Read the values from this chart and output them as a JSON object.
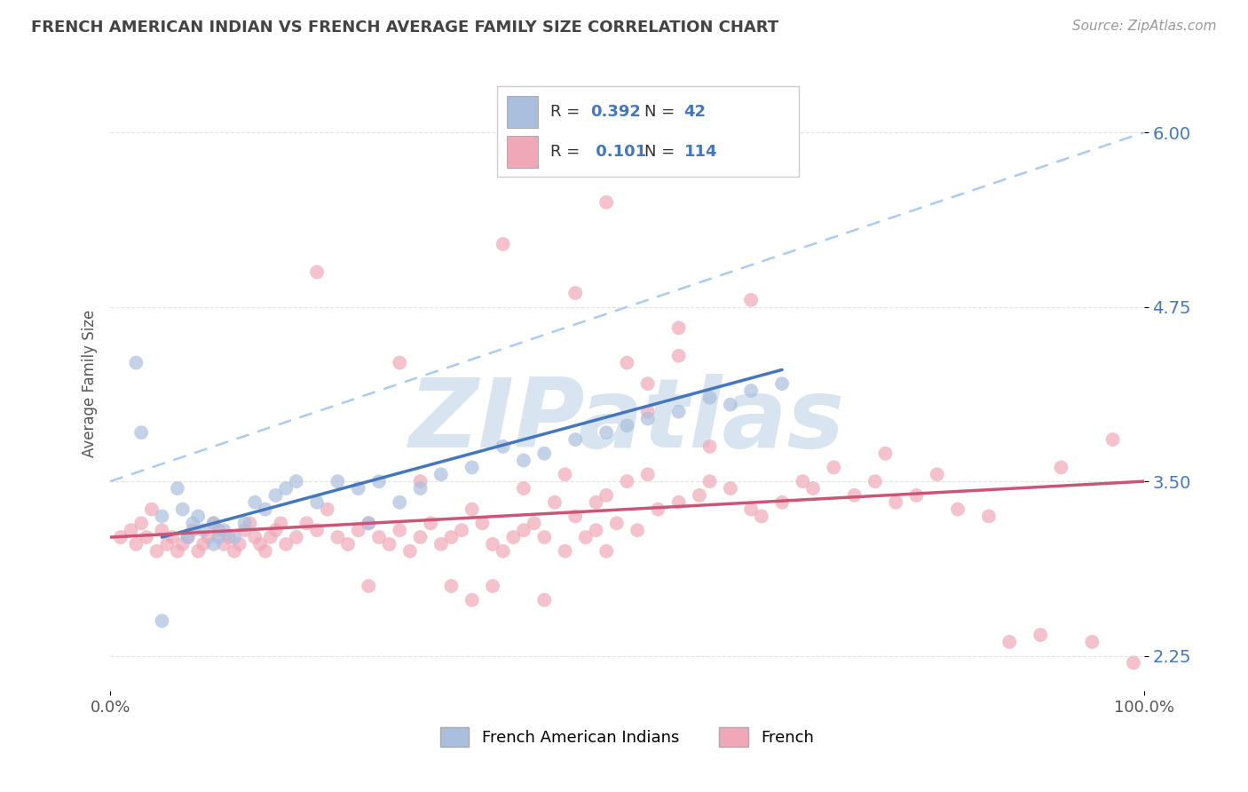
{
  "title": "FRENCH AMERICAN INDIAN VS FRENCH AVERAGE FAMILY SIZE CORRELATION CHART",
  "source_text": "Source: ZipAtlas.com",
  "ylabel": "Average Family Size",
  "y_ticks": [
    2.25,
    3.5,
    4.75,
    6.0
  ],
  "x_range": [
    0,
    100
  ],
  "y_range": [
    2.0,
    6.4
  ],
  "blue_r": "0.392",
  "blue_n": "42",
  "pink_r": "0.101",
  "pink_n": "114",
  "blue_scatter_color": "#AABFDD",
  "pink_scatter_color": "#F0A8B8",
  "blue_line_color": "#4477BB",
  "pink_line_color": "#CC5577",
  "dash_line_color": "#AACCEE",
  "watermark": "ZIPatlas",
  "watermark_color": "#D8E4F0",
  "background_color": "#FFFFFF",
  "grid_color": "#DDDDDD",
  "ytick_color": "#4477BB",
  "title_color": "#444444",
  "legend_blue_patch": "#AABFDD",
  "legend_pink_patch": "#F0A8B8",
  "legend_text_color": "#333333",
  "legend_value_color": "#4477BB",
  "blue_scatter_x": [
    2.5,
    3.0,
    5.0,
    6.5,
    7.0,
    7.5,
    8.0,
    8.5,
    9.0,
    10.0,
    10.5,
    11.0,
    12.0,
    13.0,
    14.0,
    15.0,
    16.0,
    17.0,
    18.0,
    20.0,
    22.0,
    24.0,
    25.0,
    26.0,
    28.0,
    30.0,
    32.0,
    35.0,
    38.0,
    40.0,
    42.0,
    45.0,
    48.0,
    50.0,
    52.0,
    55.0,
    58.0,
    60.0,
    62.0,
    65.0,
    5.0,
    10.0
  ],
  "blue_scatter_y": [
    4.35,
    3.85,
    3.25,
    3.45,
    3.3,
    3.1,
    3.2,
    3.25,
    3.15,
    3.2,
    3.1,
    3.15,
    3.1,
    3.2,
    3.35,
    3.3,
    3.4,
    3.45,
    3.5,
    3.35,
    3.5,
    3.45,
    3.2,
    3.5,
    3.35,
    3.45,
    3.55,
    3.6,
    3.75,
    3.65,
    3.7,
    3.8,
    3.85,
    3.9,
    3.95,
    4.0,
    4.1,
    4.05,
    4.15,
    4.2,
    2.5,
    3.05
  ],
  "pink_scatter_x": [
    1.0,
    2.0,
    2.5,
    3.0,
    3.5,
    4.0,
    4.5,
    5.0,
    5.5,
    6.0,
    6.5,
    7.0,
    7.5,
    8.0,
    8.5,
    9.0,
    9.5,
    10.0,
    10.5,
    11.0,
    11.5,
    12.0,
    12.5,
    13.0,
    13.5,
    14.0,
    14.5,
    15.0,
    15.5,
    16.0,
    16.5,
    17.0,
    18.0,
    19.0,
    20.0,
    21.0,
    22.0,
    23.0,
    24.0,
    25.0,
    26.0,
    27.0,
    28.0,
    29.0,
    30.0,
    31.0,
    32.0,
    33.0,
    34.0,
    35.0,
    36.0,
    37.0,
    38.0,
    39.0,
    40.0,
    41.0,
    42.0,
    43.0,
    44.0,
    45.0,
    46.0,
    47.0,
    48.0,
    49.0,
    50.0,
    51.0,
    52.0,
    53.0,
    55.0,
    57.0,
    58.0,
    60.0,
    62.0,
    63.0,
    65.0,
    67.0,
    68.0,
    70.0,
    72.0,
    74.0,
    75.0,
    76.0,
    78.0,
    80.0,
    82.0,
    85.0,
    87.0,
    90.0,
    92.0,
    95.0,
    97.0,
    99.0,
    38.0,
    48.0,
    20.0,
    45.0,
    55.0,
    62.0,
    28.0,
    50.0,
    35.0,
    42.0,
    52.0,
    40.0,
    44.0,
    30.0,
    47.0,
    48.0,
    58.0,
    52.0,
    25.0,
    33.0,
    37.0,
    55.0
  ],
  "pink_scatter_y": [
    3.1,
    3.15,
    3.05,
    3.2,
    3.1,
    3.3,
    3.0,
    3.15,
    3.05,
    3.1,
    3.0,
    3.05,
    3.1,
    3.15,
    3.0,
    3.05,
    3.1,
    3.2,
    3.15,
    3.05,
    3.1,
    3.0,
    3.05,
    3.15,
    3.2,
    3.1,
    3.05,
    3.0,
    3.1,
    3.15,
    3.2,
    3.05,
    3.1,
    3.2,
    3.15,
    3.3,
    3.1,
    3.05,
    3.15,
    3.2,
    3.1,
    3.05,
    3.15,
    3.0,
    3.1,
    3.2,
    3.05,
    3.1,
    3.15,
    3.3,
    3.2,
    3.05,
    3.0,
    3.1,
    3.15,
    3.2,
    3.1,
    3.35,
    3.0,
    3.25,
    3.1,
    3.15,
    3.0,
    3.2,
    3.5,
    3.15,
    3.55,
    3.3,
    3.35,
    3.4,
    3.5,
    3.45,
    3.3,
    3.25,
    3.35,
    3.5,
    3.45,
    3.6,
    3.4,
    3.5,
    3.7,
    3.35,
    3.4,
    3.55,
    3.3,
    3.25,
    2.35,
    2.4,
    3.6,
    2.35,
    3.8,
    2.2,
    5.2,
    5.5,
    5.0,
    4.85,
    4.6,
    4.8,
    4.35,
    4.35,
    2.65,
    2.65,
    4.2,
    3.45,
    3.55,
    3.5,
    3.35,
    3.4,
    3.75,
    4.0,
    2.75,
    2.75,
    2.75,
    4.4
  ],
  "blue_trendline_x": [
    5,
    65
  ],
  "blue_trendline_y": [
    3.1,
    4.3
  ],
  "pink_trendline_x": [
    0,
    100
  ],
  "pink_trendline_y": [
    3.1,
    3.5
  ],
  "dash_line_x": [
    0,
    100
  ],
  "dash_line_y": [
    3.5,
    6.0
  ],
  "bottom_legend": [
    "French American Indians",
    "French"
  ]
}
